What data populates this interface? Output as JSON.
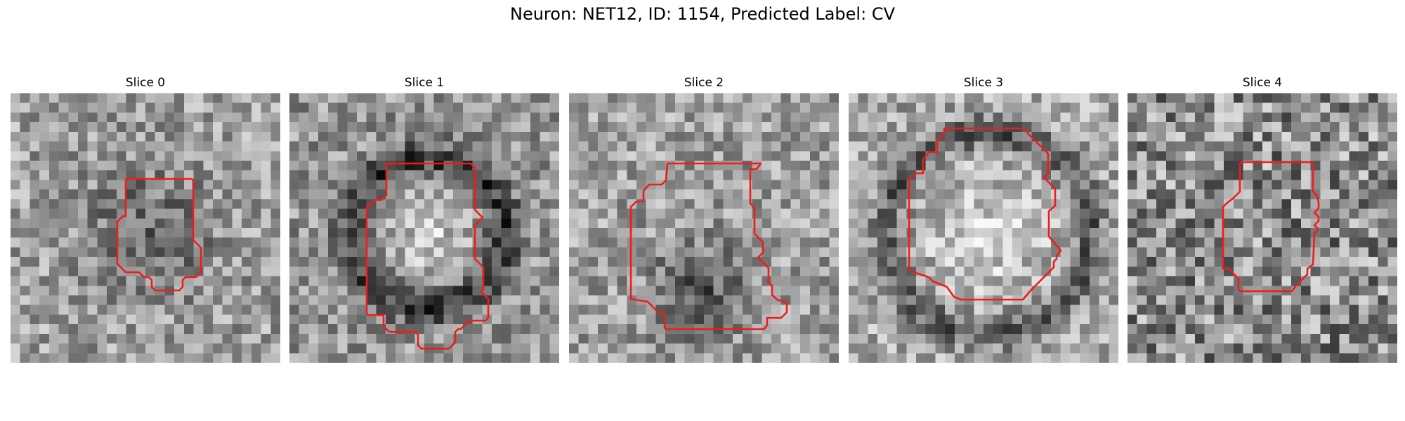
{
  "figure": {
    "title": "Neuron: NET12, ID: 1154, Predicted Label: CV"
  },
  "colors": {
    "contour": "#ee1c1c",
    "background": "#ffffff"
  },
  "panels": [
    {
      "title": "Slice 0",
      "blob": "dark"
    },
    {
      "title": "Slice 1",
      "blob": "ring"
    },
    {
      "title": "Slice 2",
      "blob": "dark-low"
    },
    {
      "title": "Slice 3",
      "blob": "bright-ring"
    },
    {
      "title": "Slice 4",
      "blob": "noise"
    }
  ]
}
